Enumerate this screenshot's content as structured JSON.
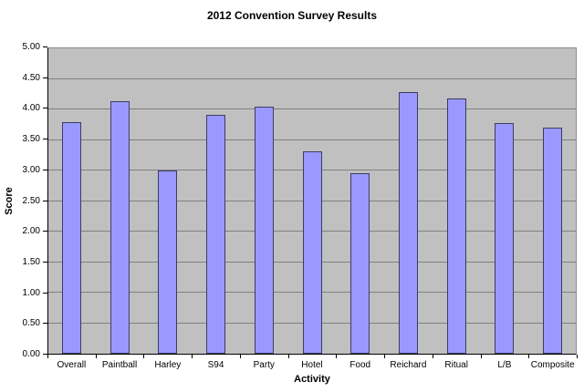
{
  "chart_data": {
    "type": "bar",
    "title": "2012 Convention Survey Results",
    "xlabel": "Activity",
    "ylabel": "Score",
    "categories": [
      "Overall",
      "Paintball",
      "Harley",
      "S94",
      "Party",
      "Hotel",
      "Food",
      "Reichard",
      "Ritual",
      "L/B",
      "Composite"
    ],
    "values": [
      3.79,
      4.14,
      3.0,
      3.91,
      4.04,
      3.31,
      2.96,
      4.29,
      4.18,
      3.78,
      3.7
    ],
    "ylim": [
      0,
      5
    ],
    "ytick_step": 0.5,
    "yticks": [
      "0.00",
      "0.50",
      "1.00",
      "1.50",
      "2.00",
      "2.50",
      "3.00",
      "3.50",
      "4.00",
      "4.50",
      "5.00"
    ],
    "grid": "horizontal",
    "legend_position": "none",
    "colors": {
      "bar_fill": "#9999FF",
      "bar_border": "#3C3C64",
      "plot_background": "#C0C0C0",
      "gridline": "#808080",
      "axis_line": "#000000",
      "page_background": "#FFFFFF",
      "text": "#000000"
    }
  }
}
